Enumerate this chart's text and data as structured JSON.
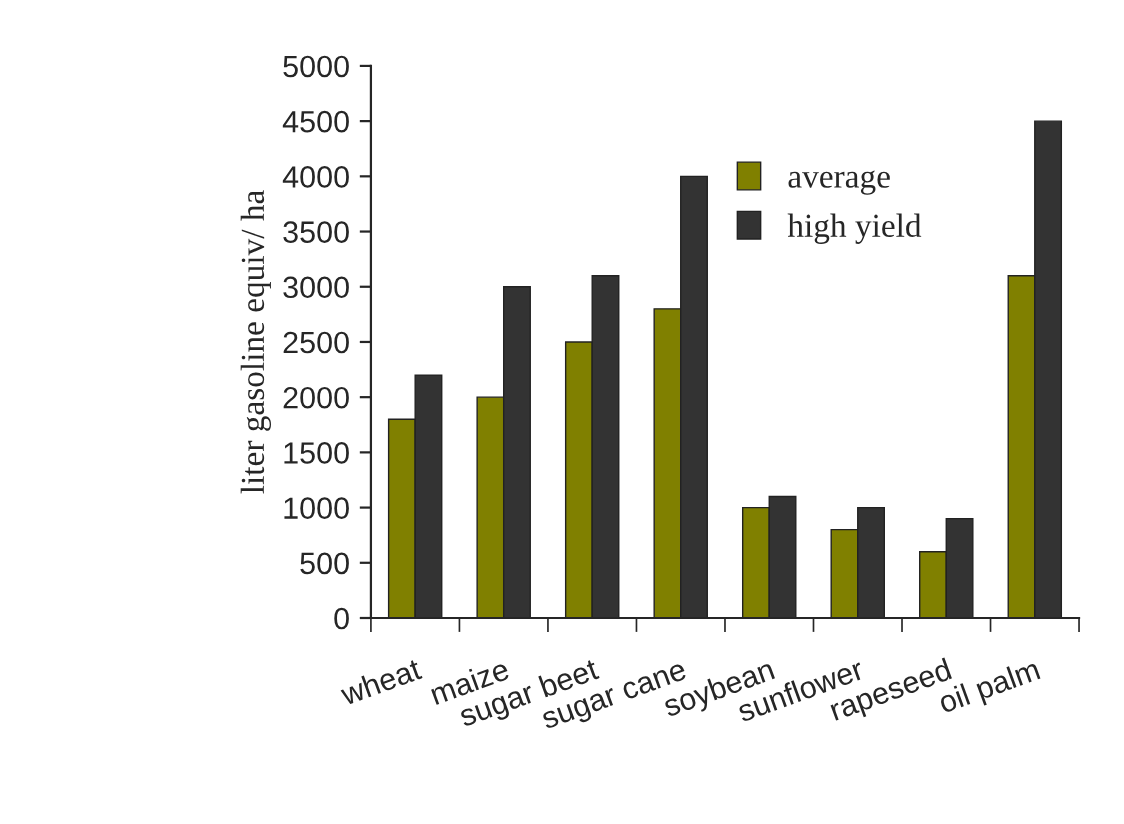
{
  "chart_data": {
    "type": "bar",
    "ylabel": "liter gasoline equiv/ ha",
    "categories": [
      "wheat",
      "maize",
      "sugar beet",
      "sugar cane",
      "soybean",
      "sunflower",
      "rapeseed",
      "oil palm"
    ],
    "series": [
      {
        "name": "average",
        "color": "#808000",
        "values": [
          1800,
          2000,
          2500,
          2800,
          1000,
          800,
          600,
          3100
        ]
      },
      {
        "name": "high yield",
        "color": "#333333",
        "values": [
          2200,
          3000,
          3100,
          4000,
          1100,
          1000,
          900,
          4500
        ]
      }
    ],
    "ylim": [
      0,
      5000
    ],
    "yticks": [
      0,
      500,
      1000,
      1500,
      2000,
      2500,
      3000,
      3500,
      4000,
      4500,
      5000
    ],
    "grid": false,
    "legend": "top right"
  }
}
